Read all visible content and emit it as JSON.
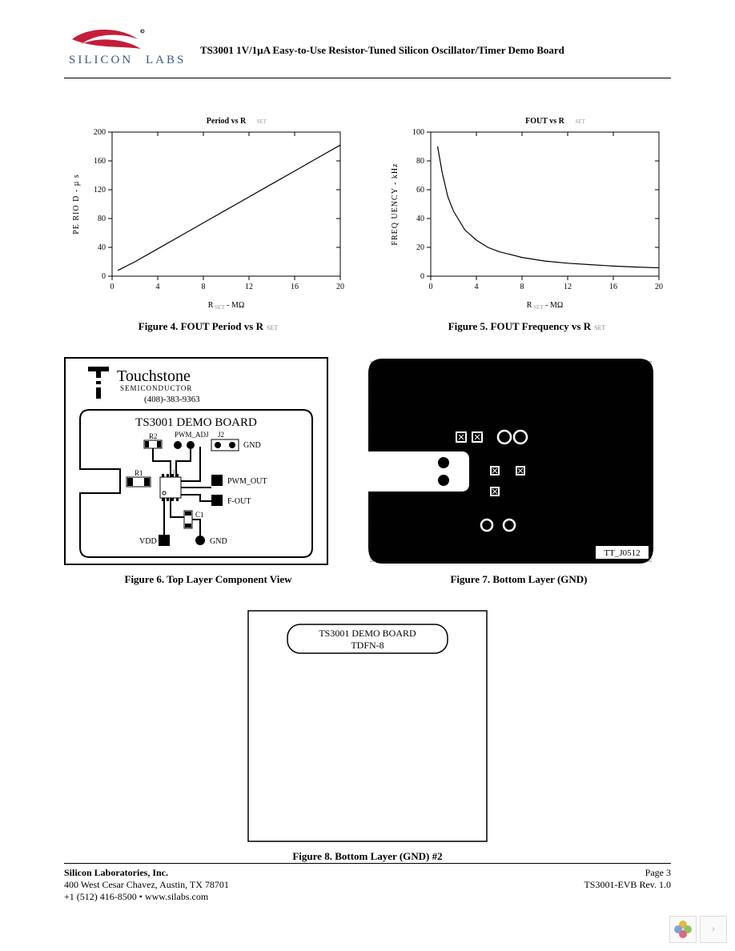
{
  "header": {
    "company_text_top": "SILICON",
    "company_text_bottom": "LABS",
    "title": "TS3001 1V/1µA Easy-to-Use Resistor-Tuned Silicon Oscillator/Timer Demo Board",
    "logo_swoosh_color": "#c41e3a",
    "logo_text_color": "#3a5a7a"
  },
  "chart_left": {
    "type": "line",
    "title": "Period vs R",
    "title_sub": "SET",
    "ylabel": "PE RIO D - µ s",
    "xlabel": "R",
    "xlabel_sub": "SET",
    "xlabel_unit": " - MΩ",
    "xlim": [
      0,
      20
    ],
    "ylim": [
      0,
      200
    ],
    "xticks": [
      0,
      4,
      8,
      12,
      16,
      20
    ],
    "yticks": [
      0,
      40,
      80,
      120,
      160,
      200
    ],
    "points": [
      [
        0.5,
        8
      ],
      [
        2,
        20
      ],
      [
        4,
        38
      ],
      [
        6,
        56
      ],
      [
        8,
        74
      ],
      [
        10,
        92
      ],
      [
        12,
        110
      ],
      [
        14,
        128
      ],
      [
        16,
        146
      ],
      [
        18,
        164
      ],
      [
        20,
        182
      ]
    ],
    "line_color": "#000000",
    "line_width": 1.2,
    "tick_fontsize": 10,
    "label_fontsize": 10,
    "title_fontsize": 10,
    "background_color": "#ffffff",
    "caption": "Figure 4. FOUT Period vs R",
    "caption_sub": "SET"
  },
  "chart_right": {
    "type": "line",
    "title": "FOUT vs R",
    "title_sub": "SET",
    "ylabel": "FREQ UENCY  - kHz",
    "xlabel": "R",
    "xlabel_sub": "SET",
    "xlabel_unit": " - MΩ",
    "xlim": [
      0,
      20
    ],
    "ylim": [
      0,
      100
    ],
    "xticks": [
      0,
      4,
      8,
      12,
      16,
      20
    ],
    "yticks": [
      0,
      20,
      40,
      60,
      80,
      100
    ],
    "points": [
      [
        0.6,
        90
      ],
      [
        1,
        72
      ],
      [
        1.5,
        55
      ],
      [
        2,
        45
      ],
      [
        3,
        32
      ],
      [
        4,
        25
      ],
      [
        5,
        20
      ],
      [
        6,
        17
      ],
      [
        8,
        13
      ],
      [
        10,
        10.5
      ],
      [
        12,
        9
      ],
      [
        14,
        8
      ],
      [
        16,
        7
      ],
      [
        18,
        6.3
      ],
      [
        20,
        5.8
      ]
    ],
    "line_color": "#000000",
    "line_width": 1.2,
    "tick_fontsize": 10,
    "label_fontsize": 10,
    "title_fontsize": 10,
    "background_color": "#ffffff",
    "caption": "Figure 5. FOUT Frequency vs R",
    "caption_sub": "SET"
  },
  "fig6": {
    "logo_name": "Touchstone",
    "logo_sub": "SEMICONDUCTOR",
    "phone": "(408)-383-9363",
    "board_title": "TS3001 DEMO BOARD",
    "labels": {
      "r2": "R2",
      "pwm_adj": "PWM_ADJ",
      "j2": "J2",
      "gnd1": "GND",
      "r1": "R1",
      "u1": "U1",
      "pwm_out": "PWM_OUT",
      "fout": "F-OUT",
      "c1": "C1",
      "vdd": "VDD",
      "gnd2": "GND"
    },
    "caption": "Figure 6. Top Layer Component View",
    "border_color": "#000000",
    "bg": "#ffffff"
  },
  "fig7": {
    "bg": "#000000",
    "slot_color": "#ffffff",
    "label_box_bg": "#ffffff",
    "label_text": "TT_J0512",
    "caption": "Figure 7. Bottom Layer (GND)",
    "corner_radius": 20,
    "pads_filled_color": "#000000",
    "pads_ring_color": "#ffffff"
  },
  "fig8": {
    "box_line1": "TS3001 DEMO BOARD",
    "box_line2": "TDFN-8",
    "caption": "Figure 8. Bottom Layer (GND) #2",
    "border_color": "#000000",
    "bg": "#ffffff"
  },
  "footer": {
    "company": "Silicon Laboratories, Inc.",
    "address": "400 West Cesar Chavez, Austin, TX 78701",
    "contact": "+1 (512) 416-8500 • www.silabs.com",
    "page": "Page 3",
    "docrev": "TS3001-EVB Rev. 1.0"
  },
  "nav": {
    "clover_colors": [
      "#e8b54a",
      "#7aa6d6",
      "#8fc65f",
      "#d86a8a"
    ],
    "arrow_glyph": "›"
  }
}
